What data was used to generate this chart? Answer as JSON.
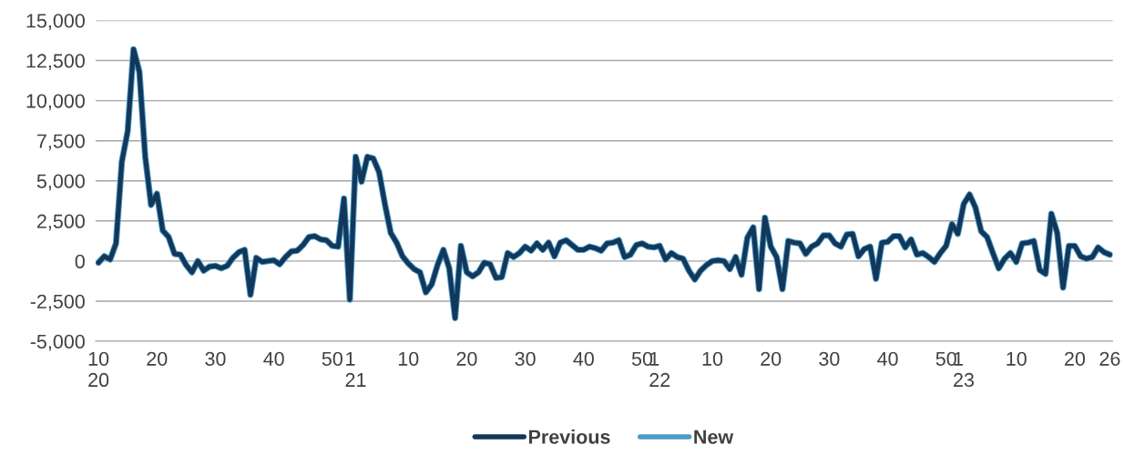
{
  "chart_data": {
    "type": "line",
    "categories": [
      "10\n20",
      null,
      null,
      null,
      null,
      null,
      null,
      null,
      null,
      null,
      "20",
      null,
      null,
      null,
      null,
      null,
      null,
      null,
      null,
      null,
      "30",
      null,
      null,
      null,
      null,
      null,
      null,
      null,
      null,
      null,
      "40",
      null,
      null,
      null,
      null,
      null,
      null,
      null,
      null,
      null,
      "50",
      null,
      null,
      null,
      "1\n21",
      null,
      null,
      null,
      null,
      null,
      null,
      null,
      null,
      "10",
      null,
      null,
      null,
      null,
      null,
      null,
      null,
      null,
      null,
      "20",
      null,
      null,
      null,
      null,
      null,
      null,
      null,
      null,
      null,
      "30",
      null,
      null,
      null,
      null,
      null,
      null,
      null,
      null,
      null,
      "40",
      null,
      null,
      null,
      null,
      null,
      null,
      null,
      null,
      null,
      "50",
      null,
      null,
      "1\n22",
      null,
      null,
      null,
      null,
      null,
      null,
      null,
      null,
      "10",
      null,
      null,
      null,
      null,
      null,
      null,
      null,
      null,
      null,
      "20",
      null,
      null,
      null,
      null,
      null,
      null,
      null,
      null,
      null,
      "30",
      null,
      null,
      null,
      null,
      null,
      null,
      null,
      null,
      null,
      "40",
      null,
      null,
      null,
      null,
      null,
      null,
      null,
      null,
      null,
      "50",
      null,
      null,
      "1\n23",
      null,
      null,
      null,
      null,
      null,
      null,
      null,
      null,
      "10",
      null,
      null,
      null,
      null,
      null,
      null,
      null,
      null,
      null,
      "20",
      null,
      null,
      null,
      null,
      null,
      "26"
    ],
    "series": [
      {
        "name": "New",
        "color": "#4a9cc4",
        "values": [
          -100,
          300,
          100,
          1100,
          6200,
          8100,
          13200,
          11800,
          6500,
          3500,
          4200,
          1900,
          1500,
          450,
          400,
          -250,
          -700,
          0,
          -600,
          -350,
          -300,
          -450,
          -300,
          200,
          550,
          700,
          -2100,
          200,
          -50,
          0,
          50,
          -200,
          250,
          600,
          650,
          1000,
          1500,
          1550,
          1350,
          1300,
          950,
          900,
          3900,
          -2400,
          6500,
          4950,
          6500,
          6400,
          5550,
          3550,
          1750,
          1150,
          300,
          -150,
          -500,
          -700,
          -1950,
          -1450,
          -250,
          700,
          -450,
          -3550,
          950,
          -700,
          -950,
          -700,
          -100,
          -200,
          -1050,
          -1000,
          500,
          250,
          500,
          900,
          650,
          1100,
          700,
          1150,
          300,
          1150,
          1300,
          1000,
          700,
          700,
          900,
          800,
          650,
          1100,
          1150,
          1300,
          250,
          400,
          1000,
          1100,
          900,
          850,
          950,
          100,
          500,
          250,
          150,
          -600,
          -1150,
          -600,
          -250,
          0,
          50,
          0,
          -500,
          250,
          -850,
          1450,
          2100,
          -1750,
          2700,
          900,
          250,
          -1750,
          1250,
          1150,
          1100,
          450,
          900,
          1100,
          1600,
          1600,
          1100,
          900,
          1650,
          1700,
          300,
          750,
          900,
          -1100,
          1150,
          1200,
          1550,
          1550,
          850,
          1350,
          400,
          500,
          250,
          -50,
          500,
          950,
          2300,
          1700,
          3550,
          4150,
          3350,
          1850,
          1500,
          500,
          -450,
          150,
          500,
          -50,
          1100,
          1150,
          1250,
          -550,
          -800,
          2950,
          1750,
          -1650,
          950,
          950,
          300,
          150,
          250,
          850,
          550,
          400
        ]
      },
      {
        "name": "Previous",
        "color": "#13375b",
        "values": [
          -100,
          300,
          100,
          1100,
          6200,
          8100,
          13200,
          11800,
          6500,
          3500,
          4200,
          1900,
          1500,
          450,
          400,
          -250,
          -700,
          0,
          -600,
          -350,
          -300,
          -450,
          -300,
          200,
          550,
          700,
          -2100,
          200,
          -50,
          0,
          50,
          -200,
          250,
          600,
          650,
          1000,
          1500,
          1550,
          1350,
          1300,
          950,
          900,
          3900,
          -2400,
          6500,
          4950,
          6500,
          6400,
          5550,
          3550,
          1750,
          1150,
          300,
          -150,
          -500,
          -700,
          -1950,
          -1450,
          -250,
          700,
          -450,
          -3550,
          950,
          -700,
          -950,
          -700,
          -100,
          -200,
          -1050,
          -1000,
          500,
          250,
          500,
          900,
          650,
          1100,
          700,
          1150,
          300,
          1150,
          1300,
          1000,
          700,
          700,
          900,
          800,
          650,
          1100,
          1150,
          1300,
          250,
          400,
          1000,
          1100,
          900,
          850,
          950,
          100,
          500,
          250,
          150,
          -600,
          -1150,
          -600,
          -250,
          0,
          50,
          0,
          -500,
          250,
          -850,
          1450,
          2100,
          -1750,
          2700,
          900,
          250,
          -1750,
          1250,
          1150,
          1100,
          450,
          900,
          1100,
          1600,
          1600,
          1100,
          900,
          1650,
          1700,
          300,
          750,
          900,
          -1100,
          1150,
          1200,
          1550,
          1550,
          850,
          1350,
          400,
          500,
          250,
          -50,
          500,
          950,
          2300,
          1700,
          3550,
          4150,
          3350,
          1850,
          1500,
          500,
          -450,
          150,
          500,
          -50,
          1100,
          1150,
          1250,
          -550,
          -800,
          2950,
          1750,
          -1650,
          950,
          950,
          300,
          150,
          250,
          850,
          550,
          400
        ]
      }
    ],
    "ylim": [
      -5000,
      15000
    ],
    "yticks": [
      {
        "value": -5000,
        "label": "-5,000"
      },
      {
        "value": -2500,
        "label": "-2,500"
      },
      0,
      {
        "value": 2500,
        "label": "2,500"
      },
      {
        "value": 5000,
        "label": "5,000"
      },
      {
        "value": 7500,
        "label": "7,500"
      },
      {
        "value": 10000,
        "label": "10,000"
      },
      {
        "value": 12500,
        "label": "12,500"
      },
      {
        "value": 15000,
        "label": "15,000"
      }
    ],
    "grid": "y",
    "legend": "bottom",
    "marker": "none",
    "line_style": "solid"
  }
}
